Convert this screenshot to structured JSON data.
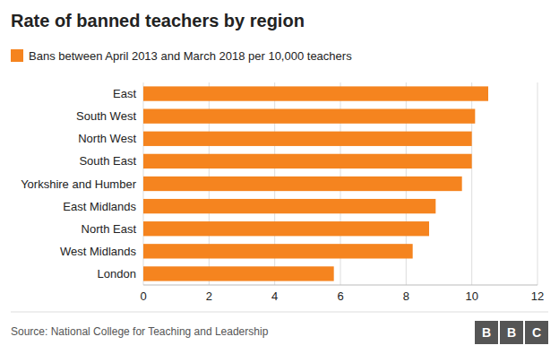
{
  "chart_data": {
    "type": "bar",
    "orientation": "horizontal",
    "title": "Rate of banned teachers by region",
    "categories": [
      "London",
      "West Midlands",
      "North East",
      "East Midlands",
      "Yorkshire and Humber",
      "South East",
      "North West",
      "South West",
      "East"
    ],
    "series": [
      {
        "name": "Bans between April 2013 and March 2018 per 10,000 teachers",
        "color": "#f5841f",
        "values": [
          5.8,
          8.2,
          8.7,
          8.9,
          9.7,
          10.0,
          10.0,
          10.1,
          10.5
        ]
      }
    ],
    "xlim": [
      0,
      12
    ],
    "xticks": [
      0,
      2,
      4,
      6,
      8,
      10,
      12
    ],
    "grid": true,
    "legend": "top-left",
    "annotations": [
      "Source: National College for Teaching and Leadership",
      "BBC"
    ]
  }
}
